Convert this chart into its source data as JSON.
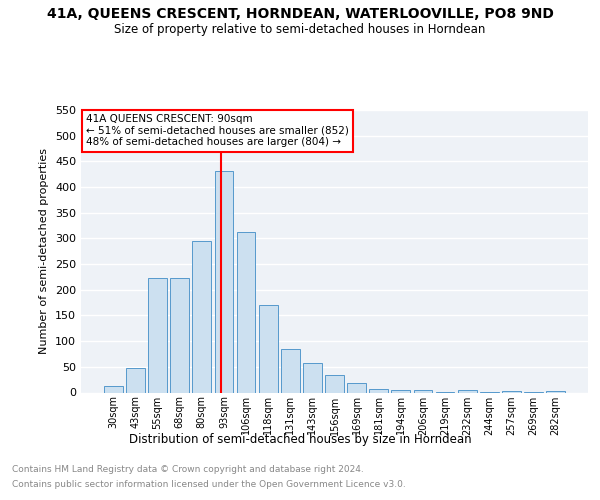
{
  "title": "41A, QUEENS CRESCENT, HORNDEAN, WATERLOOVILLE, PO8 9ND",
  "subtitle": "Size of property relative to semi-detached houses in Horndean",
  "xlabel": "Distribution of semi-detached houses by size in Horndean",
  "ylabel": "Number of semi-detached properties",
  "bar_color": "#cce0f0",
  "bar_edge_color": "#5599cc",
  "categories": [
    "30sqm",
    "43sqm",
    "55sqm",
    "68sqm",
    "80sqm",
    "93sqm",
    "106sqm",
    "118sqm",
    "131sqm",
    "143sqm",
    "156sqm",
    "169sqm",
    "181sqm",
    "194sqm",
    "206sqm",
    "219sqm",
    "232sqm",
    "244sqm",
    "257sqm",
    "269sqm",
    "282sqm"
  ],
  "values": [
    13,
    48,
    222,
    222,
    295,
    432,
    313,
    170,
    84,
    57,
    34,
    18,
    6,
    5,
    5,
    1,
    4,
    1,
    3,
    1,
    3
  ],
  "property_label": "41A QUEENS CRESCENT: 90sqm",
  "pct_smaller": 51,
  "n_smaller": 852,
  "pct_larger": 48,
  "n_larger": 804,
  "vline_x": 4.87,
  "ylim": [
    0,
    550
  ],
  "yticks": [
    0,
    50,
    100,
    150,
    200,
    250,
    300,
    350,
    400,
    450,
    500,
    550
  ],
  "background_color": "#eef2f7",
  "grid_color": "#ffffff",
  "footer_line1": "Contains HM Land Registry data © Crown copyright and database right 2024.",
  "footer_line2": "Contains public sector information licensed under the Open Government Licence v3.0."
}
